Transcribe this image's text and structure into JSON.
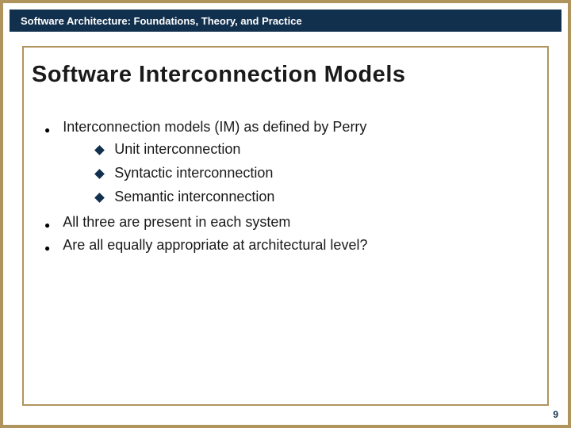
{
  "colors": {
    "frame": "#b0945e",
    "header_bg": "#11304e",
    "header_text": "#ffffff",
    "content_border": "#b0945e",
    "title_text": "#1a1a1a",
    "body_text": "#1a1a1a",
    "bullet_l1": "#000000",
    "bullet_l2": "#11304e",
    "page_num": "#11304e",
    "slide_bg": "#ffffff"
  },
  "typography": {
    "header_fontsize": 13,
    "title_fontsize": 29,
    "body_fontsize": 18,
    "pagenum_fontsize": 12
  },
  "header": {
    "text": "Software Architecture: Foundations, Theory, and Practice"
  },
  "title": "Software Interconnection Models",
  "bullets": [
    {
      "text": "Interconnection models (IM) as defined by Perry",
      "sub": [
        "Unit interconnection",
        "Syntactic interconnection",
        "Semantic interconnection"
      ]
    },
    {
      "text": "All three are present in each system",
      "sub": []
    },
    {
      "text": "Are all equally appropriate at architectural level?",
      "sub": []
    }
  ],
  "page_number": "9"
}
